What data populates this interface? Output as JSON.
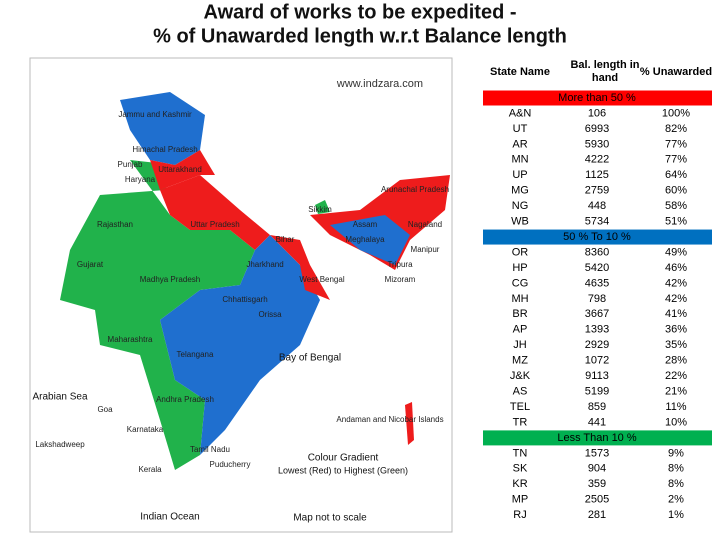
{
  "title": [
    "Award of works to be expedited -",
    "% of Unawarded length w.r.t Balance length"
  ],
  "map": {
    "source": "www.indzara.com",
    "labels": [
      "Jammu and Kashmir",
      "Himachal Pradesh",
      "Punjab",
      "Uttarakhand",
      "Haryana",
      "Rajasthan",
      "Uttar Pradesh",
      "Bihar",
      "Sikkim",
      "Arunachal Pradesh",
      "Assam",
      "Nagaland",
      "Meghalaya",
      "Manipur",
      "Tripura",
      "Mizoram",
      "Gujarat",
      "Madhya Pradesh",
      "Jharkhand",
      "West Bengal",
      "Chhattisgarh",
      "Orissa",
      "Maharashtra",
      "Telangana",
      "Andhra Pradesh",
      "Karnataka",
      "Goa",
      "Kerala",
      "Tamil Nadu",
      "Puducherry",
      "Lakshadweep",
      "Andaman and Nicobar Islands"
    ],
    "seas": [
      "Arabian Sea",
      "Bay of Bengal",
      "Indian Ocean"
    ],
    "legend": [
      "Colour Gradient",
      "Lowest (Red) to Highest (Green)"
    ],
    "note": "Map not to scale"
  },
  "table": {
    "headers": [
      "State Name",
      "Bal. length in hand",
      "% Unawarded"
    ],
    "groups": [
      {
        "label": "More than 50 %",
        "color": "#ff0000",
        "rows": [
          [
            "A&N",
            "106",
            "100%"
          ],
          [
            "UT",
            "6993",
            "82%"
          ],
          [
            "AR",
            "5930",
            "77%"
          ],
          [
            "MN",
            "4222",
            "77%"
          ],
          [
            "UP",
            "1125",
            "64%"
          ],
          [
            "MG",
            "2759",
            "60%"
          ],
          [
            "NG",
            "448",
            "58%"
          ],
          [
            "WB",
            "5734",
            "51%"
          ]
        ]
      },
      {
        "label": "50 % To 10 %",
        "color": "#0070c0",
        "rows": [
          [
            "OR",
            "8360",
            "49%"
          ],
          [
            "HP",
            "5420",
            "46%"
          ],
          [
            "CG",
            "4635",
            "42%"
          ],
          [
            "MH",
            "798",
            "42%"
          ],
          [
            "BR",
            "3667",
            "41%"
          ],
          [
            "AP",
            "1393",
            "36%"
          ],
          [
            "JH",
            "2929",
            "35%"
          ],
          [
            "MZ",
            "1072",
            "28%"
          ],
          [
            "J&K",
            "9113",
            "22%"
          ],
          [
            "AS",
            "5199",
            "21%"
          ],
          [
            "TEL",
            "859",
            "11%"
          ],
          [
            "TR",
            "441",
            "10%"
          ]
        ]
      },
      {
        "label": "Less Than 10 %",
        "color": "#00b050",
        "rows": [
          [
            "TN",
            "1573",
            "9%"
          ],
          [
            "SK",
            "904",
            "8%"
          ],
          [
            "KR",
            "359",
            "8%"
          ],
          [
            "MP",
            "2505",
            "2%"
          ],
          [
            "RJ",
            "281",
            "1%"
          ]
        ]
      }
    ]
  }
}
